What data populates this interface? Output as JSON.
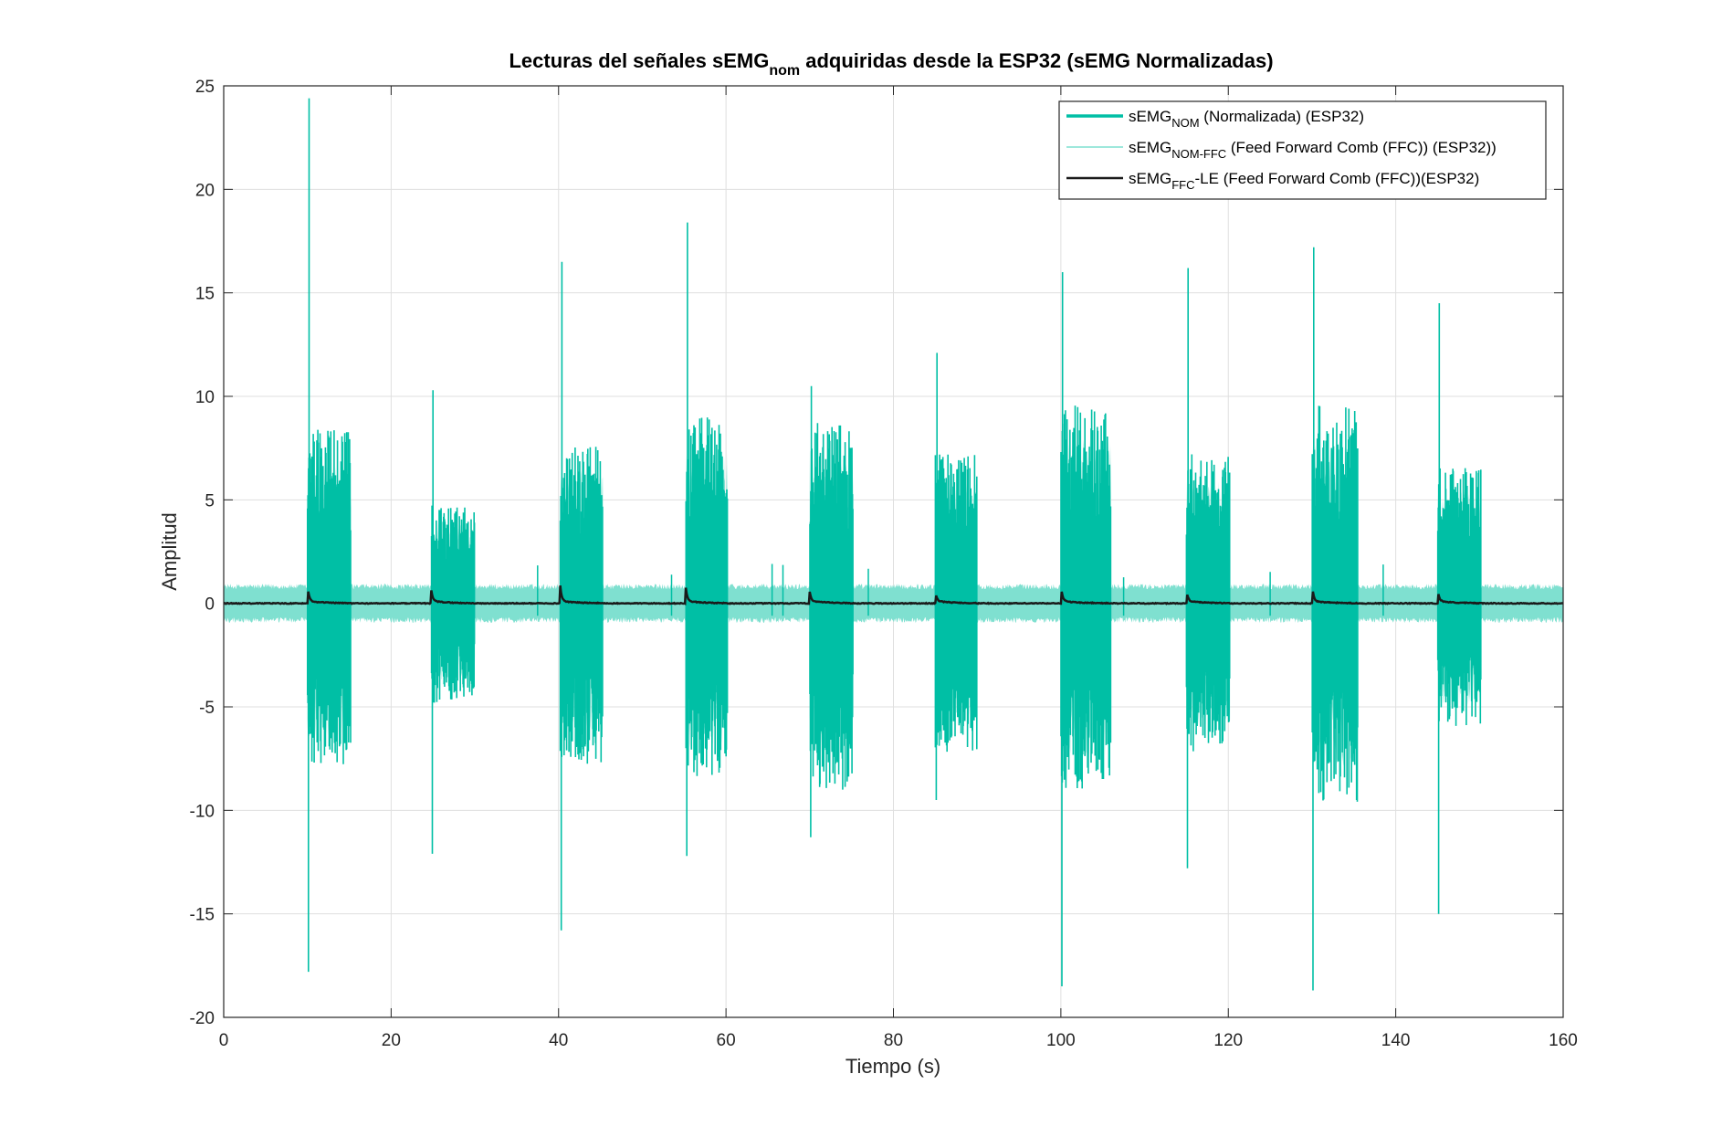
{
  "chart_data": {
    "type": "line",
    "title": {
      "main": "Lecturas del señales sEMG",
      "sub": "nom",
      "rest": " adquiridas desde la ESP32 (sEMG Normalizadas)"
    },
    "xlabel": "Tiempo (s)",
    "ylabel": "Amplitud",
    "xlim": [
      0,
      160
    ],
    "ylim": [
      -20,
      25
    ],
    "x_ticks": [
      0,
      20,
      40,
      60,
      80,
      100,
      120,
      140,
      160
    ],
    "y_ticks": [
      -20,
      -15,
      -10,
      -5,
      0,
      5,
      10,
      15,
      20,
      25
    ],
    "grid": true,
    "legend_position": "top-right",
    "baseline_noise_amplitude": 0.9,
    "bursts": [
      {
        "start": 10.0,
        "end": 15.2,
        "peak_pos": 24.4,
        "peak_neg": -17.8,
        "typical_pos": 7,
        "typical_neg": -6.5,
        "envelope_peak": 0.85
      },
      {
        "start": 24.8,
        "end": 30.0,
        "peak_pos": 10.3,
        "peak_neg": -12.1,
        "typical_pos": 4,
        "typical_neg": -4,
        "envelope_peak": 0.5
      },
      {
        "start": 40.2,
        "end": 45.3,
        "peak_pos": 16.5,
        "peak_neg": -15.8,
        "typical_pos": 6.5,
        "typical_neg": -6.5,
        "envelope_peak": 0.75
      },
      {
        "start": 55.2,
        "end": 60.2,
        "peak_pos": 18.4,
        "peak_neg": -12.2,
        "typical_pos": 7.5,
        "typical_neg": -7,
        "envelope_peak": 0.65
      },
      {
        "start": 70.0,
        "end": 75.2,
        "peak_pos": 10.5,
        "peak_neg": -11.3,
        "typical_pos": 7.5,
        "typical_neg": -7.5,
        "envelope_peak": 0.45
      },
      {
        "start": 85.0,
        "end": 90.0,
        "peak_pos": 12.1,
        "peak_neg": -9.5,
        "typical_pos": 6,
        "typical_neg": -6,
        "envelope_peak": 0.5
      },
      {
        "start": 100.0,
        "end": 106.0,
        "peak_pos": 16.0,
        "peak_neg": -18.5,
        "typical_pos": 8,
        "typical_neg": -7.5,
        "envelope_peak": 0.85
      },
      {
        "start": 115.0,
        "end": 120.2,
        "peak_pos": 16.2,
        "peak_neg": -12.8,
        "typical_pos": 6,
        "typical_neg": -6,
        "envelope_peak": 0.55
      },
      {
        "start": 130.0,
        "end": 135.5,
        "peak_pos": 17.2,
        "peak_neg": -18.7,
        "typical_pos": 8,
        "typical_neg": -8,
        "envelope_peak": 0.8
      },
      {
        "start": 145.0,
        "end": 150.2,
        "peak_pos": 14.5,
        "peak_neg": -15.0,
        "typical_pos": 5.5,
        "typical_neg": -5,
        "envelope_peak": 0.6
      }
    ],
    "series": [
      {
        "key": "nom",
        "label_main": "sEMG",
        "label_sub": "NOM",
        "label_rest": " (Normalizada) (ESP32)",
        "color": "#00BFA5",
        "line_width": 3.5
      },
      {
        "key": "ffc",
        "label_main": "sEMG",
        "label_sub": "NOM-FFC",
        "label_rest": "  (Feed Forward Comb (FFC)) (ESP32))",
        "color": "#7FE0D0",
        "line_width": 1.2
      },
      {
        "key": "le",
        "label_main": "sEMG",
        "label_sub": "FFC",
        "label_rest": "-LE (Feed Forward Comb (FFC))(ESP32)",
        "color": "#1a1a1a",
        "line_width": 2.5
      }
    ]
  }
}
